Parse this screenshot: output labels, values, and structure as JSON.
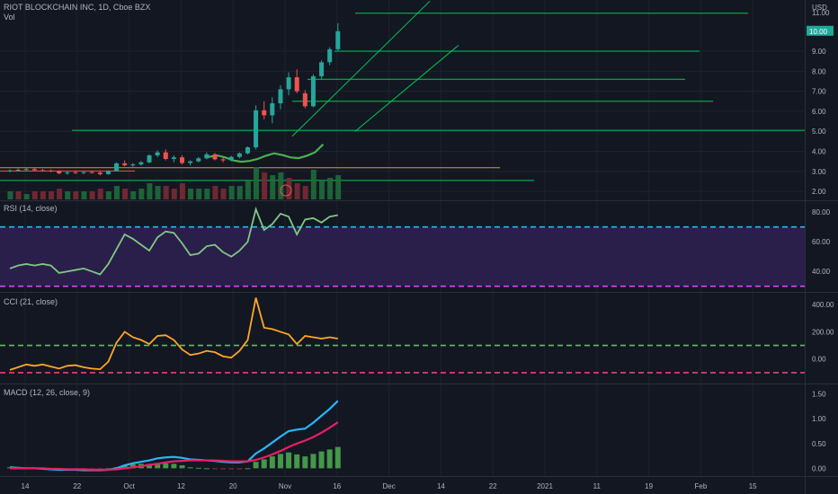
{
  "header": {
    "symbol": "RIOT BLOCKCHAIN INC, 1D, Cboe BZX",
    "volume_label": "Vol",
    "currency": "USD",
    "last_price": "10.00",
    "top_price_label": "11.00"
  },
  "panes": {
    "rsi_label": "RSI (14, close)",
    "cci_label": "CCI (21, close)",
    "macd_label": "MACD (12, 26, close, 9)"
  },
  "colors": {
    "background": "#131722",
    "up": "#26a69a",
    "down": "#ef5350",
    "trend": "#4caf50",
    "trendline": "#00c853",
    "rsi_line": "#81c784",
    "rsi_upper": "#29b6f6",
    "rsi_lower": "#e040fb",
    "rsi_band": "#2a1f4a",
    "cci_line": "#ffa726",
    "cci_upper": "#66bb6a",
    "cci_lower": "#ec407a",
    "macd_line": "#29b6f6",
    "signal_line": "#e91e63",
    "hist": "#4caf50"
  },
  "chart_data": [
    {
      "type": "candlestick",
      "title": "RIOT BLOCKCHAIN INC, 1D, Cboe BZX",
      "ylabel": "USD",
      "ylim": [
        1.6,
        11.2
      ],
      "y_ticks": [
        "2.00",
        "3.00",
        "4.00",
        "5.00",
        "6.00",
        "7.00",
        "8.00",
        "9.00"
      ],
      "x_ticks": [
        "14",
        "22",
        "Oct",
        "12",
        "20",
        "Nov",
        "16",
        "Dec",
        "14",
        "22",
        "2021",
        "11",
        "19",
        "Feb",
        "15"
      ],
      "x_tick_index": [
        0,
        5,
        10,
        15,
        20,
        25,
        30,
        35,
        40,
        45,
        50,
        55,
        60,
        65,
        70
      ],
      "candles": [
        [
          3.02,
          3.1,
          2.95,
          3.05
        ],
        [
          3.05,
          3.15,
          3.0,
          3.08
        ],
        [
          3.08,
          3.18,
          3.02,
          3.12
        ],
        [
          3.12,
          3.2,
          3.04,
          3.06
        ],
        [
          3.06,
          3.12,
          2.98,
          3.04
        ],
        [
          3.04,
          3.1,
          2.96,
          3.0
        ],
        [
          3.0,
          3.06,
          2.85,
          2.9
        ],
        [
          2.9,
          3.0,
          2.82,
          2.95
        ],
        [
          2.95,
          3.05,
          2.88,
          2.92
        ],
        [
          2.92,
          3.0,
          2.86,
          2.96
        ],
        [
          2.96,
          3.04,
          2.9,
          2.94
        ],
        [
          2.94,
          3.0,
          2.8,
          2.86
        ],
        [
          2.86,
          3.05,
          2.84,
          3.02
        ],
        [
          3.02,
          3.45,
          3.0,
          3.4
        ],
        [
          3.4,
          3.55,
          3.25,
          3.3
        ],
        [
          3.3,
          3.42,
          3.22,
          3.35
        ],
        [
          3.35,
          3.52,
          3.28,
          3.45
        ],
        [
          3.45,
          3.85,
          3.4,
          3.8
        ],
        [
          3.8,
          4.05,
          3.7,
          3.95
        ],
        [
          3.95,
          4.1,
          3.55,
          3.62
        ],
        [
          3.62,
          3.8,
          3.45,
          3.7
        ],
        [
          3.7,
          3.8,
          3.35,
          3.42
        ],
        [
          3.42,
          3.55,
          3.3,
          3.5
        ],
        [
          3.5,
          3.72,
          3.45,
          3.65
        ],
        [
          3.65,
          3.95,
          3.6,
          3.85
        ],
        [
          3.85,
          3.92,
          3.55,
          3.6
        ],
        [
          3.6,
          3.7,
          3.45,
          3.55
        ],
        [
          3.55,
          3.78,
          3.5,
          3.72
        ],
        [
          3.72,
          3.95,
          3.65,
          3.9
        ],
        [
          3.9,
          4.25,
          3.85,
          4.2
        ],
        [
          4.2,
          6.3,
          4.1,
          6.05
        ],
        [
          6.05,
          6.5,
          5.6,
          5.8
        ],
        [
          5.8,
          6.7,
          5.4,
          6.4
        ],
        [
          6.4,
          7.3,
          6.1,
          7.1
        ],
        [
          7.1,
          7.95,
          6.8,
          7.7
        ],
        [
          7.7,
          8.1,
          6.9,
          7.0
        ],
        [
          6.9,
          7.05,
          6.15,
          6.25
        ],
        [
          6.25,
          7.85,
          6.2,
          7.75
        ],
        [
          7.75,
          8.55,
          7.6,
          8.45
        ],
        [
          8.45,
          9.2,
          8.3,
          9.1
        ],
        [
          9.1,
          10.4,
          9.0,
          10.0
        ]
      ],
      "volume_colors": [
        "g",
        "r",
        "g",
        "r",
        "r",
        "r",
        "r",
        "g",
        "r",
        "g",
        "r",
        "r",
        "g",
        "g",
        "r",
        "g",
        "g",
        "g",
        "g",
        "r",
        "r",
        "r",
        "g",
        "g",
        "g",
        "r",
        "r",
        "g",
        "g",
        "g",
        "g",
        "r",
        "g",
        "g",
        "r",
        "r",
        "r",
        "g",
        "g",
        "g",
        "g"
      ],
      "volume": [
        3,
        3,
        2,
        3,
        3,
        3,
        4,
        3,
        3,
        3,
        3,
        4,
        3,
        5,
        4,
        3,
        4,
        6,
        5,
        5,
        4,
        6,
        4,
        4,
        4,
        5,
        4,
        5,
        5,
        7,
        12,
        10,
        9,
        10,
        8,
        6,
        5,
        11,
        7,
        8,
        9
      ]
    },
    {
      "type": "line",
      "title": "RSI (14, close)",
      "ylim": [
        28,
        85
      ],
      "y_ticks": [
        "80.00",
        "60.00",
        "40.00"
      ],
      "levels": [
        70,
        30
      ],
      "values": [
        42,
        44,
        45,
        44,
        45,
        44,
        39,
        40,
        41,
        42,
        40,
        38,
        45,
        55,
        65,
        62,
        58,
        54,
        63,
        67,
        66,
        59,
        51,
        52,
        57,
        58,
        53,
        50,
        54,
        60,
        82,
        68,
        72,
        79,
        77,
        65,
        75,
        76,
        73,
        77,
        78
      ]
    },
    {
      "type": "line",
      "title": "CCI (21, close)",
      "ylim": [
        -160,
        460
      ],
      "y_ticks": [
        "400.00",
        "200.00",
        "0.00"
      ],
      "levels": [
        100,
        -100
      ],
      "values": [
        -80,
        -60,
        -40,
        -50,
        -40,
        -55,
        -70,
        -50,
        -45,
        -60,
        -70,
        -75,
        -20,
        120,
        200,
        160,
        140,
        110,
        170,
        175,
        140,
        70,
        30,
        40,
        60,
        50,
        20,
        10,
        60,
        140,
        450,
        230,
        220,
        200,
        180,
        110,
        170,
        160,
        150,
        160,
        150
      ]
    },
    {
      "type": "line",
      "title": "MACD (12, 26, close, 9)",
      "ylim": [
        -0.12,
        1.62
      ],
      "y_ticks": [
        "1.50",
        "1.00",
        "0.50",
        "0.00"
      ],
      "series": [
        {
          "values": [
            0.02,
            0.01,
            0.0,
            0.0,
            -0.01,
            -0.02,
            -0.03,
            -0.03,
            -0.03,
            -0.04,
            -0.04,
            -0.04,
            -0.03,
            0.0,
            0.06,
            0.1,
            0.13,
            0.16,
            0.2,
            0.22,
            0.23,
            0.21,
            0.18,
            0.17,
            0.16,
            0.15,
            0.13,
            0.12,
            0.12,
            0.14,
            0.3,
            0.4,
            0.52,
            0.64,
            0.75,
            0.78,
            0.8,
            0.92,
            1.06,
            1.2,
            1.36
          ]
        },
        {
          "values": [
            0.0,
            0.0,
            0.0,
            0.0,
            0.0,
            -0.01,
            -0.01,
            -0.02,
            -0.02,
            -0.02,
            -0.03,
            -0.03,
            -0.03,
            -0.02,
            0.0,
            0.02,
            0.04,
            0.07,
            0.09,
            0.12,
            0.14,
            0.15,
            0.16,
            0.16,
            0.16,
            0.16,
            0.15,
            0.14,
            0.14,
            0.14,
            0.17,
            0.22,
            0.28,
            0.35,
            0.43,
            0.5,
            0.56,
            0.63,
            0.72,
            0.82,
            0.93
          ]
        }
      ],
      "histogram": [
        0.02,
        0.01,
        0.0,
        0.0,
        -0.01,
        -0.01,
        -0.02,
        -0.01,
        -0.01,
        -0.02,
        -0.01,
        -0.01,
        0.0,
        0.02,
        0.06,
        0.08,
        0.09,
        0.09,
        0.11,
        0.1,
        0.09,
        0.06,
        0.02,
        0.01,
        0.0,
        -0.01,
        -0.02,
        -0.02,
        -0.02,
        0.0,
        0.13,
        0.18,
        0.24,
        0.29,
        0.32,
        0.28,
        0.24,
        0.29,
        0.34,
        0.38,
        0.43
      ]
    }
  ]
}
